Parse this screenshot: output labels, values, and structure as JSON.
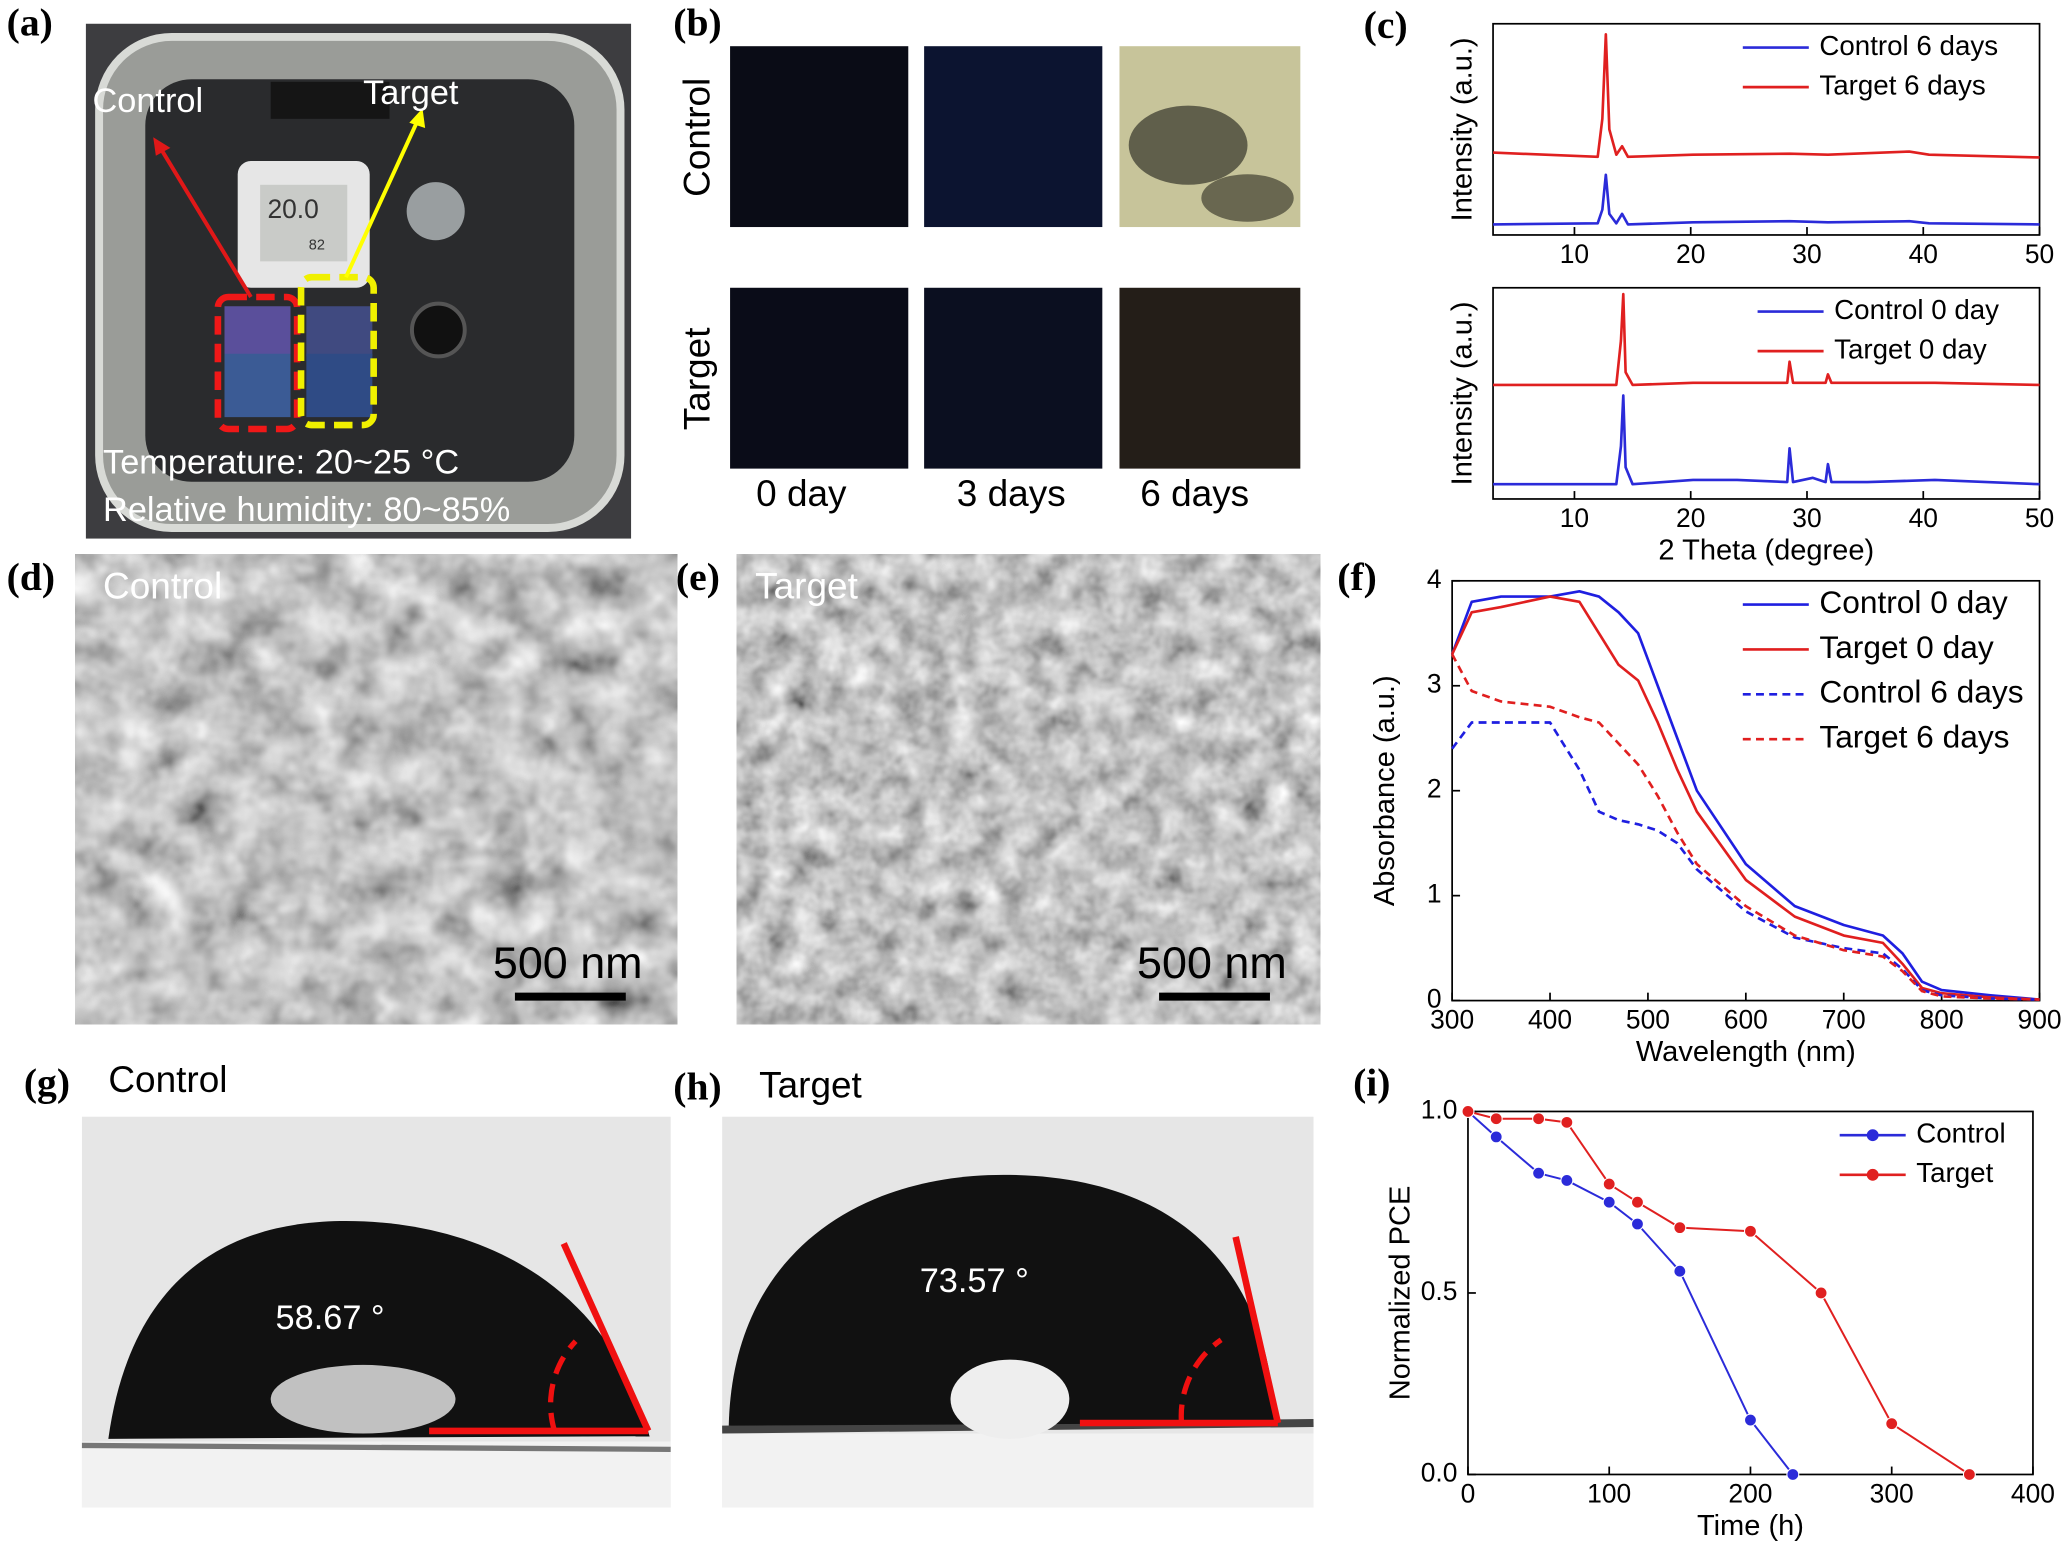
{
  "panels": {
    "a": {
      "label": "(a)",
      "control": "Control",
      "target": "Target",
      "display_temp": "20.0",
      "display_rh": "82",
      "temperature": "Temperature: 20~25 °C",
      "humidity": "Relative humidity: 80~85%"
    },
    "b": {
      "label": "(b)",
      "rows": [
        "Control",
        "Target"
      ],
      "columns": [
        "0 day",
        "3 days",
        "6 days"
      ]
    },
    "c": {
      "label": "(c)"
    },
    "d": {
      "label": "(d)",
      "sample": "Control",
      "scale": "500 nm"
    },
    "e": {
      "label": "(e)",
      "sample": "Target",
      "scale": "500 nm"
    },
    "f": {
      "label": "(f)"
    },
    "g": {
      "label": "(g)",
      "sample": "Control",
      "angle": "58.67 °"
    },
    "h": {
      "label": "(h)",
      "sample": "Target",
      "angle": "73.57 °"
    },
    "i": {
      "label": "(i)"
    }
  },
  "chart_data": [
    {
      "type": "line",
      "y_label": "Intensity (a.u.)",
      "legend": "upper right",
      "xlim": [
        3,
        50
      ],
      "xticks": [
        10,
        20,
        30,
        40,
        50
      ],
      "ylim": [
        0,
        10
      ],
      "x": [
        3,
        12,
        12.4,
        12.7,
        13,
        13.6,
        14.1,
        14.6,
        20.2,
        28.5,
        31.8,
        38.8,
        40.5,
        50
      ],
      "series": [
        {
          "name": "Control 6 days",
          "color": "#2b2bd9",
          "values": [
            0.5,
            0.55,
            1.2,
            2.85,
            1.0,
            0.55,
            1.0,
            0.5,
            0.6,
            0.65,
            0.6,
            0.65,
            0.55,
            0.5
          ]
        },
        {
          "name": "Target  6 days",
          "color": "#e02020",
          "values": [
            3.9,
            3.7,
            5.5,
            9.5,
            5.0,
            3.8,
            4.2,
            3.7,
            3.8,
            3.85,
            3.8,
            3.95,
            3.8,
            3.67
          ]
        }
      ]
    },
    {
      "type": "line",
      "x_label": "2 Theta (degree)",
      "y_label": "Intensity (a.u.)",
      "legend": "upper right",
      "xlim": [
        3,
        50
      ],
      "xticks": [
        10,
        20,
        30,
        40,
        50
      ],
      "ylim": [
        0,
        10
      ],
      "x": [
        3,
        13.6,
        14.0,
        14.2,
        14.4,
        15,
        20.2,
        24,
        28.3,
        28.5,
        28.8,
        30.5,
        31.6,
        31.8,
        32.1,
        35.2,
        41,
        50
      ],
      "series": [
        {
          "name": "Control 0 day",
          "color": "#2b2bd9",
          "values": [
            0.7,
            0.7,
            2.5,
            4.9,
            1.5,
            0.7,
            0.9,
            0.9,
            0.8,
            2.4,
            0.8,
            1.0,
            0.8,
            1.65,
            0.8,
            0.8,
            0.9,
            0.7
          ]
        },
        {
          "name": "Target  0 day",
          "color": "#e02020",
          "values": [
            5.4,
            5.4,
            7.5,
            9.7,
            6.0,
            5.4,
            5.5,
            5.5,
            5.5,
            6.5,
            5.5,
            5.5,
            5.5,
            5.9,
            5.5,
            5.5,
            5.5,
            5.4
          ]
        }
      ]
    },
    {
      "type": "line",
      "x_label": "Wavelength (nm)",
      "y_label": "Absorbance (a.u.)",
      "legend": "upper right",
      "xlim": [
        300,
        900
      ],
      "xticks": [
        300,
        400,
        500,
        600,
        700,
        800,
        900
      ],
      "ylim": [
        0,
        4
      ],
      "yticks": [
        0,
        1,
        2,
        3,
        4
      ],
      "x": [
        300,
        320,
        350,
        400,
        430,
        450,
        470,
        490,
        510,
        530,
        550,
        600,
        650,
        700,
        740,
        760,
        780,
        800,
        850,
        900
      ],
      "series": [
        {
          "name": "Control 0 day",
          "color": "#1f1fe0",
          "dashed": false,
          "values": [
            3.3,
            3.8,
            3.85,
            3.85,
            3.9,
            3.85,
            3.7,
            3.5,
            3.0,
            2.5,
            2.0,
            1.3,
            0.9,
            0.72,
            0.62,
            0.45,
            0.18,
            0.1,
            0.05,
            0.01
          ]
        },
        {
          "name": "Target  0 day",
          "color": "#e01f1f",
          "dashed": false,
          "values": [
            3.3,
            3.7,
            3.75,
            3.85,
            3.8,
            3.5,
            3.2,
            3.05,
            2.65,
            2.2,
            1.8,
            1.15,
            0.8,
            0.62,
            0.55,
            0.35,
            0.12,
            0.07,
            0.03,
            0.01
          ]
        },
        {
          "name": "Control 6 days",
          "color": "#1f1fe0",
          "dashed": true,
          "values": [
            2.4,
            2.65,
            2.65,
            2.65,
            2.2,
            1.8,
            1.72,
            1.68,
            1.62,
            1.5,
            1.25,
            0.85,
            0.6,
            0.5,
            0.45,
            0.3,
            0.1,
            0.05,
            0.02,
            0.01
          ]
        },
        {
          "name": "Target  6 days",
          "color": "#e01f1f",
          "dashed": true,
          "values": [
            3.3,
            2.95,
            2.85,
            2.8,
            2.7,
            2.65,
            2.45,
            2.25,
            1.95,
            1.6,
            1.3,
            0.9,
            0.62,
            0.48,
            0.42,
            0.28,
            0.09,
            0.04,
            0.02,
            0.01
          ]
        }
      ]
    },
    {
      "type": "line",
      "markers": true,
      "x_label": "Time (h)",
      "y_label": "Normalized PCE",
      "legend": "upper right",
      "xlim": [
        0,
        400
      ],
      "xticks": [
        0,
        100,
        200,
        300,
        400
      ],
      "ylim": [
        0,
        1
      ],
      "yticks": [
        {
          "value": 0,
          "label": "0.0"
        },
        {
          "value": 0.5,
          "label": "0.5"
        },
        {
          "value": 1,
          "label": "1.0"
        }
      ],
      "series": [
        {
          "name": "Control",
          "color": "#2b2bd9",
          "x": [
            0,
            20,
            50,
            70,
            100,
            120,
            150,
            200,
            230
          ],
          "values": [
            1.0,
            0.93,
            0.83,
            0.81,
            0.75,
            0.69,
            0.56,
            0.15,
            0
          ]
        },
        {
          "name": "Target",
          "color": "#e02020",
          "x": [
            0,
            20,
            50,
            70,
            100,
            120,
            150,
            200,
            250,
            300,
            355
          ],
          "values": [
            1.0,
            0.98,
            0.98,
            0.97,
            0.8,
            0.75,
            0.68,
            0.67,
            0.5,
            0.14,
            0
          ]
        }
      ]
    }
  ]
}
